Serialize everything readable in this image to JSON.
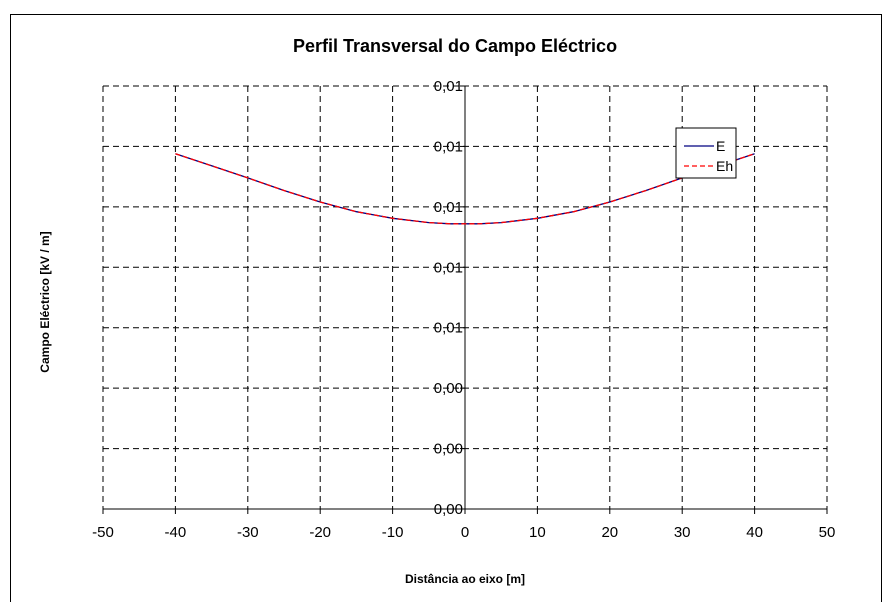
{
  "chart_data": {
    "type": "line",
    "title": "Perfil Transversal do Campo Eléctrico",
    "xlabel": "Distância ao eixo [m]",
    "ylabel": "Campo Eléctrico [kV / m]",
    "xlim": [
      -50,
      50
    ],
    "x_ticks": [
      -50,
      -40,
      -30,
      -20,
      -10,
      0,
      10,
      20,
      30,
      40,
      50
    ],
    "y_tick_labels": [
      "0,00",
      "0,00",
      "0,00",
      "0,01",
      "0,01",
      "0,01",
      "0,01",
      "0,01"
    ],
    "ylim": [
      0,
      0.007
    ],
    "grid": true,
    "legend_position": "top-right",
    "series": [
      {
        "name": "E",
        "color": "#000080",
        "dash": "solid",
        "x": [
          -40,
          -35,
          -30,
          -25,
          -20,
          -15,
          -10,
          -5,
          -2,
          0,
          2,
          5,
          10,
          15,
          20,
          25,
          30,
          35,
          40
        ],
        "y": [
          0.00588,
          0.00568,
          0.00548,
          0.00527,
          0.00508,
          0.00492,
          0.00481,
          0.00474,
          0.00472,
          0.00472,
          0.00472,
          0.00474,
          0.00481,
          0.00492,
          0.00508,
          0.00527,
          0.00548,
          0.00568,
          0.00588
        ]
      },
      {
        "name": "Eh",
        "color": "#ff0000",
        "dash": "dashed",
        "x": [
          -40,
          -35,
          -30,
          -25,
          -20,
          -15,
          -10,
          -5,
          -2,
          0,
          2,
          5,
          10,
          15,
          20,
          25,
          30,
          35,
          40
        ],
        "y": [
          0.00588,
          0.00568,
          0.00548,
          0.00527,
          0.00508,
          0.00492,
          0.00481,
          0.00474,
          0.00472,
          0.00472,
          0.00472,
          0.00474,
          0.00481,
          0.00492,
          0.00508,
          0.00527,
          0.00548,
          0.00568,
          0.00588
        ]
      }
    ]
  }
}
